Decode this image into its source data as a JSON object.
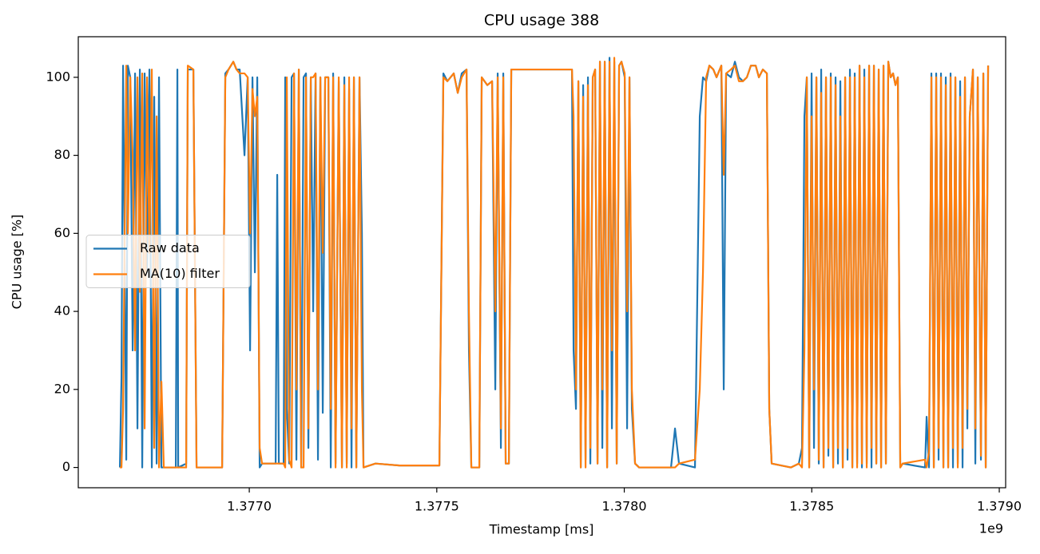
{
  "chart_data": {
    "type": "line",
    "title": "CPU usage 388",
    "xlabel": "Timestamp [ms]",
    "ylabel": "CPU usage [%]",
    "x_offset_label": "1e9",
    "xlim": [
      1376544000,
      1379017000
    ],
    "xticks": [
      {
        "value": 1377000000,
        "label": "1.3770"
      },
      {
        "value": 1377500000,
        "label": "1.3775"
      },
      {
        "value": 1378000000,
        "label": "1.3780"
      },
      {
        "value": 1378500000,
        "label": "1.3785"
      },
      {
        "value": 1379000000,
        "label": "1.3790"
      }
    ],
    "ylim": [
      -5.2,
      110.4
    ],
    "yticks": [
      0,
      20,
      40,
      60,
      80,
      100
    ],
    "legend": "center left",
    "x": [
      1376654940,
      1376659200,
      1376663460,
      1376671980,
      1376676240,
      1376682630,
      1376689020,
      1376695410,
      1376701800,
      1376708190,
      1376714580,
      1376720970,
      1376727360,
      1376733750,
      1376740140,
      1376746530,
      1376752920,
      1376759310,
      1376765700,
      1376772090,
      1376804040,
      1376808300,
      1376810430,
      1376831730,
      1376835990,
      1376850900,
      1376859420,
      1376867940,
      1376927580,
      1376936100,
      1376944620,
      1376957400,
      1376965920,
      1376974440,
      1376987220,
      1376995740,
      1377002130,
      1377008520,
      1377014910,
      1377021300,
      1377027690,
      1377034080,
      1377070290,
      1377074550,
      1377078810,
      1377091590,
      1377095850,
      1377100110,
      1377106500,
      1377112890,
      1377119280,
      1377125670,
      1377132060,
      1377138450,
      1377144840,
      1377151230,
      1377157620,
      1377164010,
      1377170400,
      1377176790,
      1377183180,
      1377189570,
      1377195960,
      1377202350,
      1377210870,
      1377217260,
      1377223650,
      1377230040,
      1377238560,
      1377247080,
      1377253470,
      1377259860,
      1377266250,
      1377272640,
      1377279030,
      1377285420,
      1377293940,
      1377300330,
      1377304590,
      1377336540,
      1377400440,
      1377506940,
      1377517590,
      1377528240,
      1377545280,
      1377555930,
      1377566580,
      1377579360,
      1377585750,
      1377592140,
      1377613440,
      1377619830,
      1377634740,
      1377647520,
      1377656040,
      1377662430,
      1377670950,
      1377677340,
      1377683730,
      1377692250,
      1377698640,
      1377826440,
      1377860520,
      1377864780,
      1377871170,
      1377877560,
      1377883950,
      1377890340,
      1377896730,
      1377903120,
      1377909510,
      1377915900,
      1377922290,
      1377928680,
      1377935070,
      1377941460,
      1377947850,
      1377954240,
      1377960630,
      1377967020,
      1377973410,
      1377979800,
      1377986190,
      1377992580,
      1378001100,
      1378007490,
      1378013880,
      1378020270,
      1378028790,
      1378039440,
      1378124640,
      1378135290,
      1378145940,
      1378188540,
      1378201320,
      1378209840,
      1378218360,
      1378226880,
      1378237530,
      1378246050,
      1378258830,
      1378265220,
      1378271610,
      1378284390,
      1378295040,
      1378305690,
      1378316340,
      1378326990,
      1378337640,
      1378350420,
      1378358940,
      1378369590,
      1378380240,
      1378386630,
      1378393020,
      1378444140,
      1378465440,
      1378473960,
      1378480350,
      1378486740,
      1378493130,
      1378499520,
      1378505910,
      1378512300,
      1378518690,
      1378525080,
      1378531470,
      1378537860,
      1378544250,
      1378550640,
      1378557030,
      1378563420,
      1378569810,
      1378576200,
      1378582590,
      1378588980,
      1378595370,
      1378601760,
      1378608150,
      1378614540,
      1378620930,
      1378627320,
      1378633710,
      1378640100,
      1378646490,
      1378652880,
      1378659270,
      1378665660,
      1378672050,
      1378678440,
      1378684830,
      1378691220,
      1378697610,
      1378704000,
      1378710390,
      1378716780,
      1378723170,
      1378729560,
      1378735950,
      1378742340,
      1378801980,
      1378806240,
      1378812630,
      1378819020,
      1378825410,
      1378831800,
      1378838190,
      1378844580,
      1378850970,
      1378857360,
      1378863750,
      1378870140,
      1378876530,
      1378882920,
      1378889310,
      1378895700,
      1378902090,
      1378908480,
      1378914870,
      1378921260,
      1378929780,
      1378936170,
      1378942560,
      1378951080,
      1378957470,
      1378963860,
      1378970250
    ],
    "series": [
      {
        "name": "Raw data",
        "color": "#1f77b4",
        "values": [
          0,
          23,
          103,
          2,
          103,
          100,
          30,
          101,
          10,
          102,
          0,
          101,
          50,
          102,
          0,
          95,
          1,
          100,
          0,
          0,
          0,
          102,
          0,
          1,
          102,
          102,
          0,
          0,
          0,
          101,
          102,
          104,
          102,
          102,
          80,
          100,
          30,
          100,
          50,
          100,
          0,
          1,
          1,
          75,
          1,
          1,
          100,
          15,
          1,
          100,
          101,
          2,
          102,
          0,
          100,
          101,
          5,
          100,
          40,
          101,
          2,
          100,
          14,
          100,
          100,
          0,
          101,
          1,
          99,
          0,
          100,
          1,
          97,
          0,
          100,
          0,
          100,
          60,
          0,
          1,
          0.5,
          0.5,
          101,
          99,
          101,
          96,
          101,
          102,
          30,
          0,
          0,
          100,
          98,
          99,
          20,
          101,
          5,
          101,
          1,
          1,
          102,
          102,
          102,
          30,
          15,
          99,
          0,
          98,
          2,
          100,
          1,
          100,
          102,
          1,
          104,
          5,
          104,
          0,
          105,
          10,
          104,
          1,
          103,
          104,
          100,
          10,
          100,
          15,
          1,
          0,
          0,
          10,
          1,
          0,
          90,
          100,
          99,
          103,
          102,
          100,
          103,
          20,
          101,
          100,
          104,
          100,
          99,
          100,
          103,
          103,
          100,
          102,
          101,
          15,
          1,
          0,
          1,
          5,
          90,
          100,
          0,
          101,
          5,
          100,
          1,
          102,
          0,
          100,
          3,
          101,
          0,
          100,
          1,
          99,
          0,
          100,
          2,
          102,
          0,
          101,
          1,
          103,
          0,
          102,
          1,
          103,
          0,
          103,
          1,
          102,
          0,
          103,
          1,
          104,
          100,
          101,
          98,
          100,
          0,
          1,
          0,
          13,
          0,
          101,
          0,
          101,
          2,
          101,
          0,
          100,
          0,
          101,
          0,
          100,
          1,
          99,
          0,
          100,
          10,
          90,
          102,
          1,
          100,
          2,
          101,
          0,
          103
        ]
      },
      {
        "name": "MA(10) filter",
        "color": "#ff7f0e",
        "values": [
          0,
          0,
          15,
          103,
          60,
          100,
          80,
          30,
          100,
          45,
          101,
          10,
          100,
          55,
          102,
          5,
          90,
          0,
          22,
          0,
          0,
          0,
          0,
          0,
          103,
          102,
          0,
          0,
          0,
          100,
          102,
          104,
          102,
          101,
          101,
          100,
          60,
          97,
          90,
          95,
          5,
          1,
          1,
          1,
          1,
          1,
          0,
          100,
          2,
          0,
          101,
          20,
          102,
          0,
          0,
          100,
          10,
          100,
          100,
          101,
          20,
          100,
          55,
          100,
          100,
          15,
          100,
          0,
          100,
          0,
          98,
          0,
          100,
          10,
          100,
          0,
          100,
          20,
          0,
          1,
          0.5,
          0.5,
          100,
          99,
          101,
          96,
          100,
          102,
          40,
          0,
          0,
          100,
          98,
          99,
          40,
          100,
          10,
          100,
          1,
          1,
          102,
          102,
          102,
          90,
          20,
          99,
          0,
          95,
          0,
          98,
          5,
          100,
          102,
          1,
          104,
          20,
          104,
          0,
          104,
          30,
          105,
          1,
          103,
          104,
          101,
          40,
          100,
          20,
          1,
          0,
          0,
          0,
          1,
          2,
          20,
          50,
          100,
          103,
          102,
          100,
          103,
          75,
          101,
          102,
          103,
          99,
          99,
          100,
          103,
          103,
          100,
          102,
          101,
          15,
          1,
          0,
          1,
          0,
          30,
          100,
          0,
          90,
          20,
          100,
          2,
          96,
          0,
          100,
          5,
          100,
          0,
          98,
          5,
          90,
          0,
          100,
          5,
          100,
          0,
          100,
          0,
          103,
          1,
          100,
          0,
          103,
          5,
          103,
          1,
          102,
          0,
          103,
          1,
          104,
          100,
          101,
          98,
          100,
          0,
          1,
          2,
          0,
          4,
          100,
          0,
          100,
          5,
          100,
          0,
          98,
          0,
          100,
          5,
          100,
          0,
          95,
          5,
          100,
          15,
          90,
          102,
          10,
          100,
          3,
          101,
          0,
          103
        ]
      }
    ]
  }
}
